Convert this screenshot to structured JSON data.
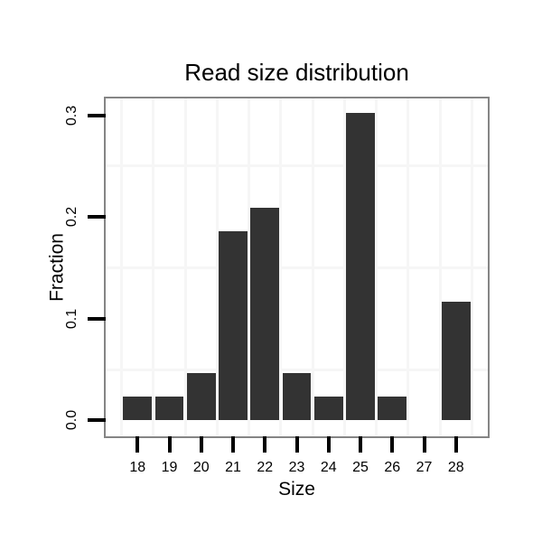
{
  "chart_data": {
    "type": "bar",
    "title": "Read size distribution",
    "xlabel": "Size",
    "ylabel": "Fraction",
    "categories": [
      18,
      19,
      20,
      21,
      22,
      23,
      24,
      25,
      26,
      27,
      28
    ],
    "values": [
      0.0233,
      0.0233,
      0.0465,
      0.186,
      0.2093,
      0.0465,
      0.0233,
      0.3023,
      0.0233,
      0,
      0.1163
    ],
    "x_tick_labels": [
      "18",
      "19",
      "20",
      "21",
      "22",
      "23",
      "24",
      "25",
      "26",
      "27",
      "28"
    ],
    "y_tick_labels": [
      "0.0",
      "0.1",
      "0.2",
      "0.3"
    ],
    "y_tick_values": [
      0.0,
      0.1,
      0.2,
      0.3
    ],
    "xlim": [
      17.0,
      29.0
    ],
    "ylim": [
      -0.0157,
      0.3165
    ],
    "x_minor_gridlines": [
      17.5,
      18.5,
      19.5,
      20.5,
      21.5,
      22.5,
      23.5,
      24.5,
      25.5,
      26.5,
      27.5,
      28.5
    ],
    "y_minor_gridlines": [
      0.05,
      0.15,
      0.25
    ],
    "bar_width": 0.9,
    "legend": "none",
    "grid": "minor-only",
    "colors": {
      "bar_fill": "#333333",
      "panel_border": "#858585",
      "gridline": "#f6f6f6",
      "tick": "#000000",
      "text": "#000000",
      "background": "#ffffff"
    }
  }
}
